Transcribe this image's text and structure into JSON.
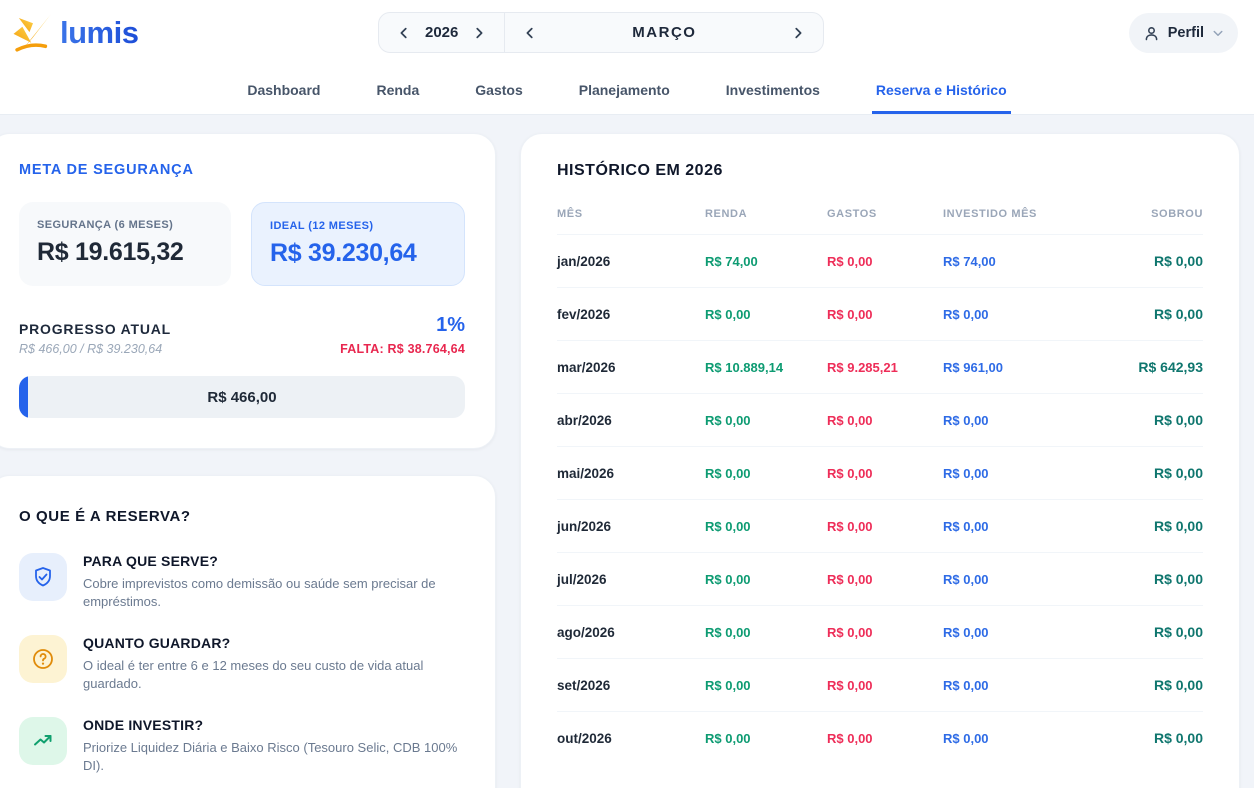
{
  "header": {
    "logo_text": "lumis",
    "year_selector": {
      "year": "2026"
    },
    "month_selector": {
      "month": "MARÇO"
    },
    "profile": {
      "label": "Perfil"
    }
  },
  "nav": {
    "tabs": [
      {
        "label": "Dashboard",
        "active": false
      },
      {
        "label": "Renda",
        "active": false
      },
      {
        "label": "Gastos",
        "active": false
      },
      {
        "label": "Planejamento",
        "active": false
      },
      {
        "label": "Investimentos",
        "active": false
      },
      {
        "label": "Reserva e Histórico",
        "active": true
      }
    ]
  },
  "meta_card": {
    "title": "META DE SEGURANÇA",
    "seguranca": {
      "label": "SEGURANÇA (6 MESES)",
      "value": "R$ 19.615,32"
    },
    "ideal": {
      "label": "IDEAL (12 MESES)",
      "value": "R$ 39.230,64"
    },
    "progress": {
      "label": "PROGRESSO ATUAL",
      "percent": "1%",
      "percent_value": 1,
      "fraction": "R$ 466,00 / R$ 39.230,64",
      "falta": "FALTA: R$ 38.764,64",
      "bar_label": "R$ 466,00"
    }
  },
  "reserva_card": {
    "title": "O QUE É A RESERVA?",
    "items": [
      {
        "icon": "shield-check-icon",
        "title": "PARA QUE SERVE?",
        "desc": "Cobre imprevistos como demissão ou saúde sem precisar de empréstimos."
      },
      {
        "icon": "question-circle-icon",
        "title": "QUANTO GUARDAR?",
        "desc": "O ideal é ter entre 6 e 12 meses do seu custo de vida atual guardado."
      },
      {
        "icon": "trend-up-icon",
        "title": "ONDE INVESTIR?",
        "desc": "Priorize Liquidez Diária e Baixo Risco (Tesouro Selic, CDB 100% DI)."
      }
    ]
  },
  "history": {
    "title": "HISTÓRICO EM 2026",
    "columns": [
      "MÊS",
      "RENDA",
      "GASTOS",
      "INVESTIDO MÊS",
      "SOBROU"
    ],
    "rows": [
      {
        "mes": "jan/2026",
        "renda": "R$ 74,00",
        "gastos": "R$ 0,00",
        "investido": "R$ 74,00",
        "sobrou": "R$ 0,00"
      },
      {
        "mes": "fev/2026",
        "renda": "R$ 0,00",
        "gastos": "R$ 0,00",
        "investido": "R$ 0,00",
        "sobrou": "R$ 0,00"
      },
      {
        "mes": "mar/2026",
        "renda": "R$ 10.889,14",
        "gastos": "R$ 9.285,21",
        "investido": "R$ 961,00",
        "sobrou": "R$ 642,93"
      },
      {
        "mes": "abr/2026",
        "renda": "R$ 0,00",
        "gastos": "R$ 0,00",
        "investido": "R$ 0,00",
        "sobrou": "R$ 0,00"
      },
      {
        "mes": "mai/2026",
        "renda": "R$ 0,00",
        "gastos": "R$ 0,00",
        "investido": "R$ 0,00",
        "sobrou": "R$ 0,00"
      },
      {
        "mes": "jun/2026",
        "renda": "R$ 0,00",
        "gastos": "R$ 0,00",
        "investido": "R$ 0,00",
        "sobrou": "R$ 0,00"
      },
      {
        "mes": "jul/2026",
        "renda": "R$ 0,00",
        "gastos": "R$ 0,00",
        "investido": "R$ 0,00",
        "sobrou": "R$ 0,00"
      },
      {
        "mes": "ago/2026",
        "renda": "R$ 0,00",
        "gastos": "R$ 0,00",
        "investido": "R$ 0,00",
        "sobrou": "R$ 0,00"
      },
      {
        "mes": "set/2026",
        "renda": "R$ 0,00",
        "gastos": "R$ 0,00",
        "investido": "R$ 0,00",
        "sobrou": "R$ 0,00"
      },
      {
        "mes": "out/2026",
        "renda": "R$ 0,00",
        "gastos": "R$ 0,00",
        "investido": "R$ 0,00",
        "sobrou": "R$ 0,00"
      }
    ]
  },
  "colors": {
    "accent_blue": "#2563eb",
    "income_green": "#0d9b72",
    "expense_red": "#ee2d58",
    "invest_blue": "#2e6be6",
    "sobrou_teal": "#0f766e",
    "falta_red": "#e8274f",
    "logo_orange": "#f59e0b"
  }
}
